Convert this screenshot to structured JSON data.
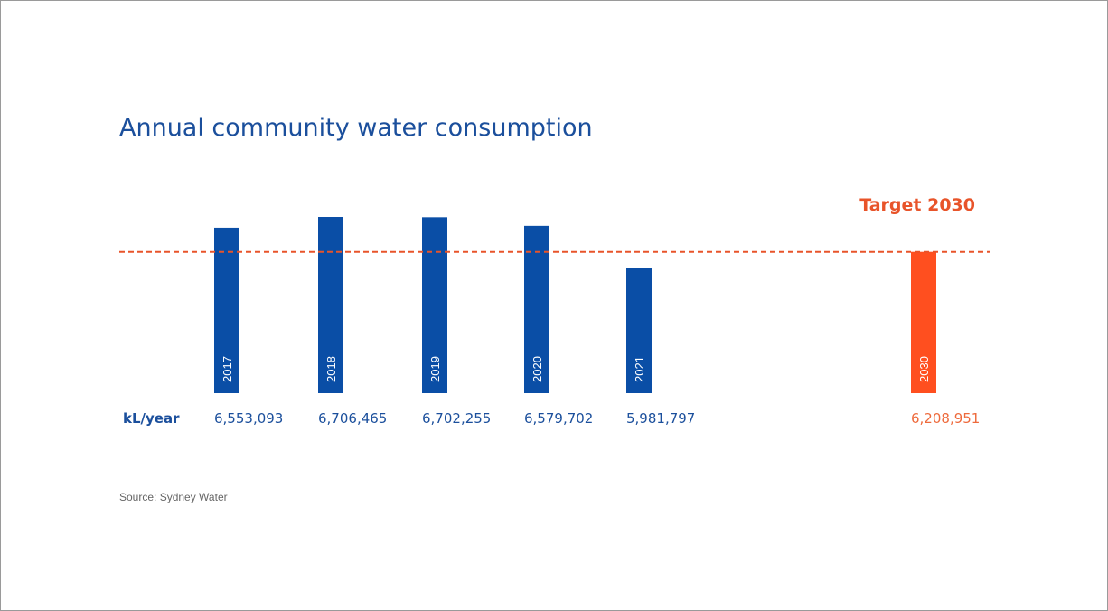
{
  "title": "Annual community water consumption",
  "source": "Source: Sydney Water",
  "colors": {
    "actual_bar": "#0a4ea6",
    "target_bar": "#ff4f1f",
    "target_line": "#e8542a",
    "value_text_actual": "#1b4f9c",
    "value_text_target": "#ee6a3c",
    "unit_label": "#1b4f9c"
  },
  "chart_data": {
    "type": "bar",
    "title": "Annual community water consumption",
    "unit_label": "kL/year",
    "categories": [
      "2017",
      "2018",
      "2019",
      "2020",
      "2021",
      "2030"
    ],
    "series": [
      {
        "values": [
          6553093,
          6706465,
          6702255,
          6579702,
          5981797,
          6208951
        ]
      }
    ],
    "value_labels": [
      "6,553,093",
      "6,706,465",
      "6,702,255",
      "6,579,702",
      "5,981,797",
      "6,208,951"
    ],
    "target": {
      "label": "Target 2030",
      "category": "2030",
      "value": 6208951
    },
    "ylim": [
      0,
      6706465
    ],
    "grid": false,
    "legend": "none"
  }
}
